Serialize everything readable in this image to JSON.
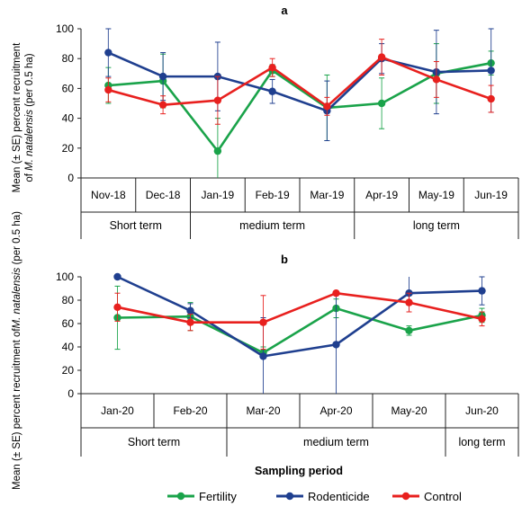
{
  "figure": {
    "xlabel": "Sampling period",
    "legend": [
      {
        "name": "Fertility",
        "color": "#1aa34a"
      },
      {
        "name": "Rodenticide",
        "color": "#1f3f8f"
      },
      {
        "name": "Control",
        "color": "#e8201e"
      }
    ]
  },
  "chart_data": [
    {
      "type": "line",
      "panel_label": "a",
      "ylabel_line1": "Mean (± SE) percent recruitment",
      "ylabel_line2_prefix": "of ",
      "ylabel_species": "M. natalensis",
      "ylabel_line2_suffix": " (per 0.5 ha)",
      "ylim": [
        0,
        100
      ],
      "yticks": [
        0,
        20,
        40,
        60,
        80,
        100
      ],
      "categories": [
        "Nov-18",
        "Dec-18",
        "Jan-19",
        "Feb-19",
        "Mar-19",
        "Apr-19",
        "May-19",
        "Jun-19"
      ],
      "groups": [
        {
          "label": "Short term",
          "span": 2
        },
        {
          "label": "medium term",
          "span": 3
        },
        {
          "label": "long term",
          "span": 3
        }
      ],
      "series": [
        {
          "name": "Fertility",
          "color": "#1aa34a",
          "values": [
            62,
            65,
            18,
            72,
            47,
            50,
            70,
            77
          ],
          "err": [
            12,
            18,
            22,
            4,
            22,
            17,
            20,
            8
          ]
        },
        {
          "name": "Rodenticide",
          "color": "#1f3f8f",
          "values": [
            84,
            68,
            68,
            58,
            45,
            80,
            71,
            72
          ],
          "err": [
            16,
            16,
            23,
            8,
            20,
            10,
            28,
            28
          ]
        },
        {
          "name": "Control",
          "color": "#e8201e",
          "values": [
            59,
            49,
            52,
            74,
            48,
            81,
            66,
            53
          ],
          "err": [
            8,
            6,
            16,
            6,
            6,
            12,
            12,
            9
          ]
        }
      ],
      "grid": false
    },
    {
      "type": "line",
      "panel_label": "b",
      "ylabel_line1": "Mean (± SE) percent recruitment of",
      "ylabel_line2_prefix": "",
      "ylabel_species": "M. natalensis",
      "ylabel_line2_suffix": " (per 0.5 ha)",
      "ylim": [
        0,
        100
      ],
      "yticks": [
        0,
        20,
        40,
        60,
        80,
        100
      ],
      "categories": [
        "Jan-20",
        "Feb-20",
        "Mar-20",
        "Apr-20",
        "May-20",
        "Jun-20"
      ],
      "groups": [
        {
          "label": "Short term",
          "span": 2
        },
        {
          "label": "medium term",
          "span": 3
        },
        {
          "label": "long term",
          "span": 1
        }
      ],
      "series": [
        {
          "name": "Fertility",
          "color": "#1aa34a",
          "values": [
            65,
            66,
            35,
            73,
            54,
            67
          ],
          "err": [
            27,
            12,
            5,
            8,
            4,
            6
          ]
        },
        {
          "name": "Rodenticide",
          "color": "#1f3f8f",
          "values": [
            100,
            71,
            32,
            42,
            86,
            88
          ],
          "err": [
            0,
            6,
            33,
            44,
            16,
            12
          ]
        },
        {
          "name": "Control",
          "color": "#e8201e",
          "values": [
            74,
            61,
            61,
            86,
            78,
            64
          ],
          "err": [
            12,
            7,
            23,
            0,
            8,
            6
          ]
        }
      ],
      "grid": false
    }
  ]
}
